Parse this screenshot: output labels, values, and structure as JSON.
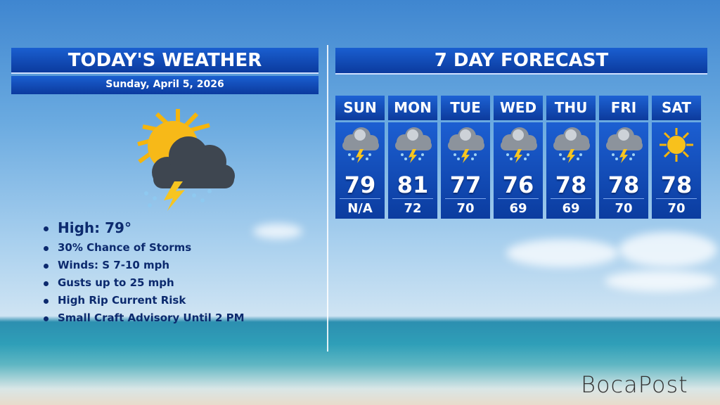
{
  "today": {
    "title": "TODAY'S WEATHER",
    "date": "Sunday, April 5, 2026",
    "icon": "sun-storm-cloud-icon",
    "bullets": [
      "High: 79°",
      "30% Chance of Storms",
      "Winds: S 7-10 mph",
      "Gusts up to 25 mph",
      "High Rip Current Risk",
      "Small Craft Advisory Until 2 PM"
    ]
  },
  "forecast": {
    "title": "7 DAY FORECAST",
    "days": [
      {
        "day": "SUN",
        "icon": "thunderstorm-icon",
        "high": "79",
        "low": "N/A"
      },
      {
        "day": "MON",
        "icon": "thunderstorm-icon",
        "high": "81",
        "low": "72"
      },
      {
        "day": "TUE",
        "icon": "thunderstorm-icon",
        "high": "77",
        "low": "70"
      },
      {
        "day": "WED",
        "icon": "thunderstorm-icon",
        "high": "76",
        "low": "69"
      },
      {
        "day": "THU",
        "icon": "thunderstorm-icon",
        "high": "78",
        "low": "69"
      },
      {
        "day": "FRI",
        "icon": "thunderstorm-icon",
        "high": "78",
        "low": "70"
      },
      {
        "day": "SAT",
        "icon": "sun-icon",
        "high": "78",
        "low": "70"
      }
    ]
  },
  "logo": "BocaPost",
  "colors": {
    "panel": "#0b3a9e",
    "text_dark": "#0c2a6e"
  }
}
